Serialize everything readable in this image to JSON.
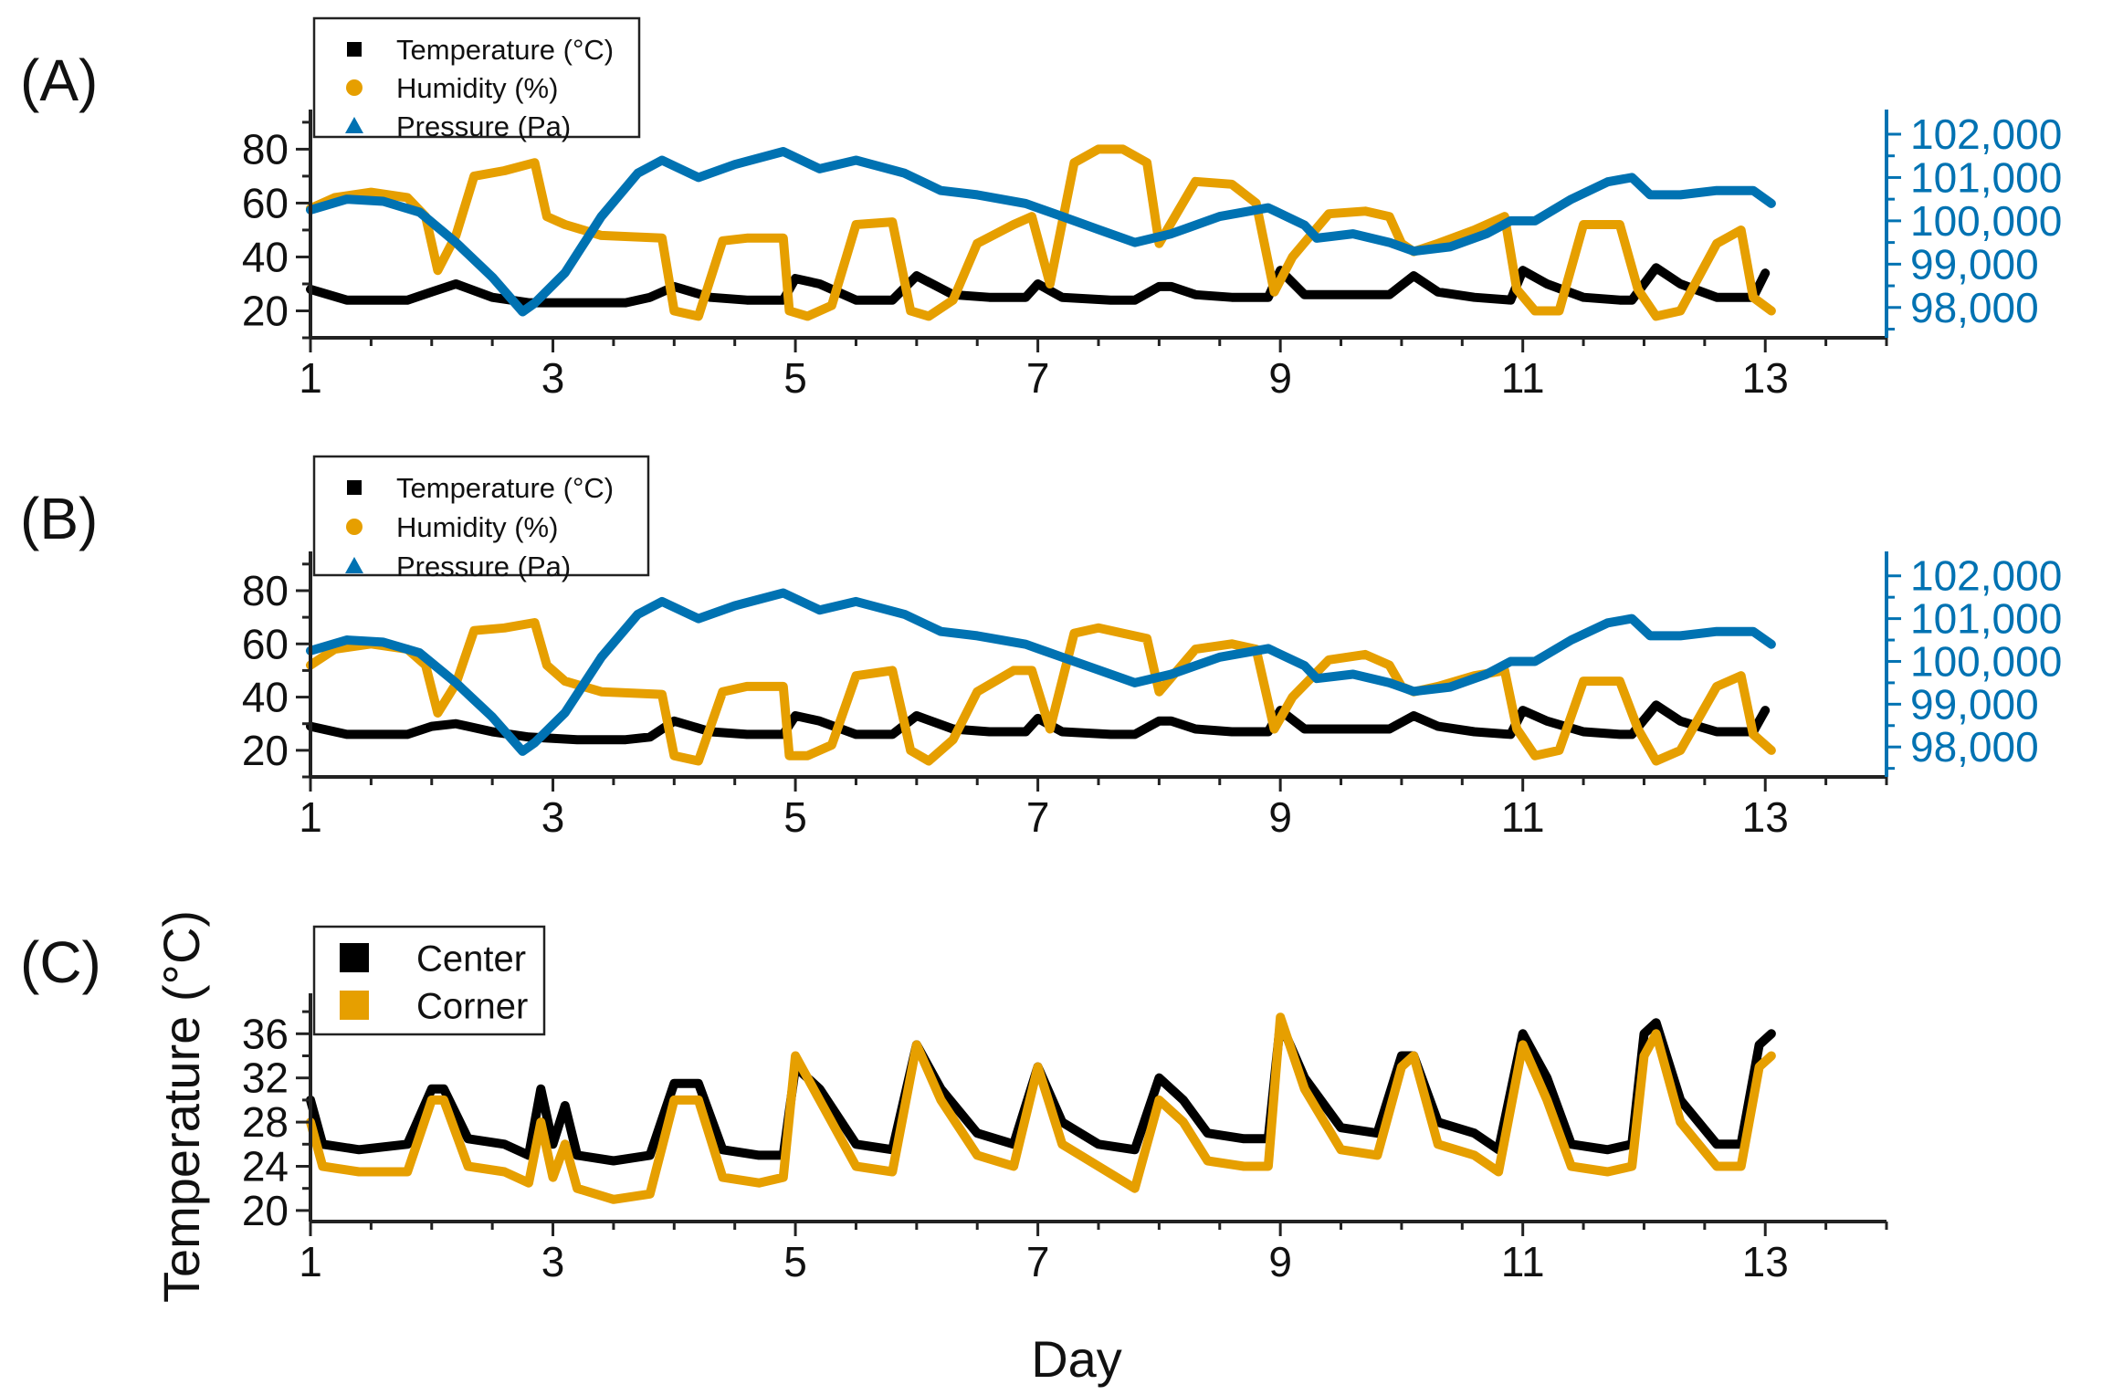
{
  "chart_data": [
    {
      "type": "line",
      "panel_label": "(A)",
      "xlabel": "",
      "x_ticks": [
        "1",
        "3",
        "5",
        "7",
        "9",
        "11",
        "13"
      ],
      "xlim": [
        1,
        14
      ],
      "y_left_ticks": [
        "20",
        "40",
        "60",
        "80"
      ],
      "ylim_left": [
        10,
        92
      ],
      "y_right_ticks": [
        "98,000",
        "99,000",
        "100,000",
        "101,000",
        "102,000"
      ],
      "ylim_right": [
        97300,
        102400
      ],
      "colors": {
        "temperature": "#000000",
        "humidity": "#E69F00",
        "pressure": "#0072B2"
      },
      "legend": [
        "Temperature (°C)",
        "Humidity (%)",
        "Pressure (Pa)"
      ],
      "series": [
        {
          "name": "Temperature (°C)",
          "axis": "left",
          "x": [
            1.0,
            1.3,
            1.8,
            2.0,
            2.2,
            2.5,
            2.8,
            3.2,
            3.6,
            3.8,
            4.0,
            4.3,
            4.6,
            4.9,
            5.0,
            5.2,
            5.5,
            5.8,
            6.0,
            6.3,
            6.6,
            6.9,
            7.0,
            7.2,
            7.6,
            7.8,
            8.0,
            8.1,
            8.3,
            8.6,
            8.9,
            9.0,
            9.2,
            9.6,
            9.9,
            10.1,
            10.3,
            10.6,
            10.9,
            11.0,
            11.2,
            11.5,
            11.8,
            11.9,
            12.1,
            12.3,
            12.6,
            12.9,
            13.0
          ],
          "values": [
            28,
            24,
            24,
            27,
            30,
            25,
            23,
            23,
            23,
            25,
            29,
            25,
            24,
            24,
            32,
            30,
            24,
            24,
            33,
            26,
            25,
            25,
            30,
            25,
            24,
            24,
            29,
            29,
            26,
            25,
            25,
            35,
            26,
            26,
            26,
            33,
            27,
            25,
            24,
            35,
            30,
            25,
            24,
            24,
            36,
            30,
            25,
            25,
            34
          ]
        },
        {
          "name": "Humidity (%)",
          "axis": "left",
          "x": [
            1.0,
            1.2,
            1.5,
            1.8,
            1.95,
            2.05,
            2.2,
            2.35,
            2.6,
            2.85,
            2.95,
            3.1,
            3.4,
            3.9,
            4.0,
            4.2,
            4.4,
            4.6,
            4.9,
            4.95,
            5.1,
            5.3,
            5.5,
            5.8,
            5.95,
            6.1,
            6.3,
            6.5,
            6.8,
            6.95,
            7.1,
            7.3,
            7.5,
            7.7,
            7.9,
            8.0,
            8.3,
            8.6,
            8.8,
            8.95,
            9.1,
            9.4,
            9.7,
            9.9,
            10.0,
            10.1,
            10.3,
            10.6,
            10.85,
            10.95,
            11.1,
            11.3,
            11.5,
            11.8,
            11.95,
            12.1,
            12.3,
            12.6,
            12.8,
            12.9,
            13.05
          ],
          "values": [
            58,
            62,
            64,
            62,
            55,
            35,
            48,
            70,
            72,
            75,
            55,
            52,
            48,
            47,
            20,
            18,
            46,
            47,
            47,
            20,
            18,
            22,
            52,
            53,
            20,
            18,
            24,
            45,
            52,
            55,
            30,
            75,
            80,
            80,
            75,
            45,
            68,
            67,
            60,
            27,
            40,
            56,
            57,
            55,
            45,
            42,
            45,
            50,
            55,
            28,
            20,
            20,
            52,
            52,
            28,
            18,
            20,
            45,
            50,
            25,
            20
          ]
        },
        {
          "name": "Pressure (Pa)",
          "axis": "right",
          "x": [
            1.0,
            1.3,
            1.6,
            1.9,
            2.2,
            2.5,
            2.75,
            2.85,
            3.1,
            3.4,
            3.7,
            3.9,
            4.2,
            4.5,
            4.9,
            5.2,
            5.5,
            5.9,
            6.2,
            6.5,
            6.9,
            7.2,
            7.5,
            7.8,
            8.1,
            8.5,
            8.9,
            9.2,
            9.3,
            9.6,
            9.9,
            10.1,
            10.4,
            10.7,
            10.9,
            11.1,
            11.4,
            11.7,
            11.9,
            12.05,
            12.3,
            12.6,
            12.9,
            13.05
          ],
          "values": [
            100250,
            100500,
            100450,
            100200,
            99500,
            98700,
            97900,
            98100,
            98800,
            100100,
            101100,
            101400,
            101000,
            101300,
            101600,
            101200,
            101400,
            101100,
            100700,
            100600,
            100400,
            100100,
            99800,
            99500,
            99700,
            100100,
            100300,
            99900,
            99600,
            99700,
            99500,
            99300,
            99400,
            99700,
            100000,
            100000,
            100500,
            100900,
            101000,
            100600,
            100600,
            100700,
            100700,
            100400
          ]
        }
      ]
    },
    {
      "type": "line",
      "panel_label": "(B)",
      "xlabel": "",
      "x_ticks": [
        "1",
        "3",
        "5",
        "7",
        "9",
        "11",
        "13"
      ],
      "xlim": [
        1,
        14
      ],
      "y_left_ticks": [
        "20",
        "40",
        "60",
        "80"
      ],
      "ylim_left": [
        10,
        92
      ],
      "y_right_ticks": [
        "98,000",
        "99,000",
        "100,000",
        "101,000",
        "102,000"
      ],
      "ylim_right": [
        97300,
        102400
      ],
      "colors": {
        "temperature": "#000000",
        "humidity": "#E69F00",
        "pressure": "#0072B2"
      },
      "legend": [
        "Temperature (°C)",
        "Humidity (%)",
        "Pressure (Pa)"
      ],
      "series": [
        {
          "name": "Temperature (°C)",
          "axis": "left",
          "x": [
            1.0,
            1.3,
            1.8,
            2.0,
            2.2,
            2.5,
            2.8,
            3.2,
            3.6,
            3.8,
            4.0,
            4.3,
            4.6,
            4.9,
            5.0,
            5.2,
            5.5,
            5.8,
            6.0,
            6.3,
            6.6,
            6.9,
            7.0,
            7.2,
            7.6,
            7.8,
            8.0,
            8.1,
            8.3,
            8.6,
            8.9,
            9.0,
            9.2,
            9.6,
            9.9,
            10.1,
            10.3,
            10.6,
            10.9,
            11.0,
            11.2,
            11.5,
            11.8,
            11.9,
            12.1,
            12.3,
            12.6,
            12.9,
            13.0
          ],
          "values": [
            29,
            26,
            26,
            29,
            30,
            27,
            25,
            24,
            24,
            25,
            31,
            27,
            26,
            26,
            33,
            31,
            26,
            26,
            33,
            28,
            27,
            27,
            32,
            27,
            26,
            26,
            31,
            31,
            28,
            27,
            27,
            35,
            28,
            28,
            28,
            33,
            29,
            27,
            26,
            35,
            31,
            27,
            26,
            26,
            37,
            31,
            27,
            27,
            35
          ]
        },
        {
          "name": "Humidity (%)",
          "axis": "left",
          "x": [
            1.0,
            1.2,
            1.5,
            1.8,
            1.95,
            2.05,
            2.2,
            2.35,
            2.6,
            2.85,
            2.95,
            3.1,
            3.4,
            3.9,
            4.0,
            4.2,
            4.4,
            4.6,
            4.9,
            4.95,
            5.1,
            5.3,
            5.5,
            5.8,
            5.95,
            6.1,
            6.3,
            6.5,
            6.8,
            6.95,
            7.1,
            7.3,
            7.5,
            7.7,
            7.9,
            8.0,
            8.3,
            8.6,
            8.8,
            8.95,
            9.1,
            9.4,
            9.7,
            9.9,
            10.0,
            10.1,
            10.3,
            10.6,
            10.85,
            10.95,
            11.1,
            11.3,
            11.5,
            11.8,
            11.95,
            12.1,
            12.3,
            12.6,
            12.8,
            12.9,
            13.05
          ],
          "values": [
            52,
            58,
            60,
            58,
            52,
            34,
            45,
            65,
            66,
            68,
            52,
            46,
            42,
            41,
            18,
            16,
            42,
            44,
            44,
            18,
            18,
            22,
            48,
            50,
            20,
            16,
            24,
            42,
            50,
            50,
            28,
            64,
            66,
            64,
            62,
            42,
            58,
            60,
            58,
            28,
            40,
            54,
            56,
            52,
            44,
            42,
            44,
            48,
            50,
            28,
            18,
            20,
            46,
            46,
            28,
            16,
            20,
            44,
            48,
            26,
            20
          ]
        },
        {
          "name": "Pressure (Pa)",
          "axis": "right",
          "x": [
            1.0,
            1.3,
            1.6,
            1.9,
            2.2,
            2.5,
            2.75,
            2.85,
            3.1,
            3.4,
            3.7,
            3.9,
            4.2,
            4.5,
            4.9,
            5.2,
            5.5,
            5.9,
            6.2,
            6.5,
            6.9,
            7.2,
            7.5,
            7.8,
            8.1,
            8.5,
            8.9,
            9.2,
            9.3,
            9.6,
            9.9,
            10.1,
            10.4,
            10.7,
            10.9,
            11.1,
            11.4,
            11.7,
            11.9,
            12.05,
            12.3,
            12.6,
            12.9,
            13.05
          ],
          "values": [
            100250,
            100500,
            100450,
            100200,
            99500,
            98700,
            97900,
            98100,
            98800,
            100100,
            101100,
            101400,
            101000,
            101300,
            101600,
            101200,
            101400,
            101100,
            100700,
            100600,
            100400,
            100100,
            99800,
            99500,
            99700,
            100100,
            100300,
            99900,
            99600,
            99700,
            99500,
            99300,
            99400,
            99700,
            100000,
            100000,
            100500,
            100900,
            101000,
            100600,
            100600,
            100700,
            100700,
            100400
          ]
        }
      ]
    },
    {
      "type": "line",
      "panel_label": "(C)",
      "xlabel": "Day",
      "ylabel": "Temperature (°C)",
      "x_ticks": [
        "1",
        "3",
        "5",
        "7",
        "9",
        "11",
        "13"
      ],
      "xlim": [
        1,
        14
      ],
      "y_left_ticks": [
        "20",
        "24",
        "28",
        "32",
        "36"
      ],
      "ylim_left": [
        19,
        39
      ],
      "colors": {
        "center": "#000000",
        "corner": "#E69F00"
      },
      "legend": [
        "Center",
        "Corner"
      ],
      "series": [
        {
          "name": "Center",
          "axis": "left",
          "x": [
            1.0,
            1.1,
            1.4,
            1.8,
            2.0,
            2.1,
            2.3,
            2.6,
            2.8,
            2.9,
            3.0,
            3.1,
            3.2,
            3.5,
            3.8,
            4.0,
            4.2,
            4.4,
            4.7,
            4.9,
            5.0,
            5.2,
            5.5,
            5.8,
            6.0,
            6.2,
            6.5,
            6.8,
            7.0,
            7.2,
            7.5,
            7.8,
            8.0,
            8.2,
            8.4,
            8.7,
            8.9,
            9.0,
            9.2,
            9.5,
            9.8,
            10.0,
            10.1,
            10.3,
            10.6,
            10.8,
            11.0,
            11.2,
            11.4,
            11.7,
            11.9,
            12.0,
            12.1,
            12.3,
            12.6,
            12.8,
            12.95,
            13.05
          ],
          "values": [
            30,
            26,
            25.5,
            26,
            31,
            31,
            26.5,
            26,
            25,
            31,
            26,
            29.5,
            25,
            24.5,
            25,
            31.5,
            31.5,
            25.5,
            25,
            25,
            33,
            31,
            26,
            25.5,
            35,
            31,
            27,
            26,
            33,
            28,
            26,
            25.5,
            32,
            30,
            27,
            26.5,
            26.5,
            37,
            32,
            27.5,
            27,
            34,
            34,
            28,
            27,
            25.5,
            36,
            32,
            26,
            25.5,
            26,
            36,
            37,
            30,
            26,
            26,
            35,
            36
          ]
        },
        {
          "name": "Corner",
          "axis": "left",
          "x": [
            1.0,
            1.1,
            1.4,
            1.8,
            2.0,
            2.1,
            2.3,
            2.6,
            2.8,
            2.9,
            3.0,
            3.1,
            3.2,
            3.5,
            3.8,
            4.0,
            4.2,
            4.4,
            4.7,
            4.9,
            5.0,
            5.2,
            5.5,
            5.8,
            6.0,
            6.2,
            6.5,
            6.8,
            7.0,
            7.2,
            7.5,
            7.8,
            8.0,
            8.2,
            8.4,
            8.7,
            8.9,
            9.0,
            9.2,
            9.5,
            9.8,
            10.0,
            10.1,
            10.3,
            10.6,
            10.8,
            11.0,
            11.2,
            11.4,
            11.7,
            11.9,
            12.0,
            12.1,
            12.3,
            12.6,
            12.8,
            12.95,
            13.05
          ],
          "values": [
            28,
            24,
            23.5,
            23.5,
            30,
            30,
            24,
            23.5,
            22.5,
            28,
            23,
            26,
            22,
            21,
            21.5,
            30,
            30,
            23,
            22.5,
            23,
            34,
            30,
            24,
            23.5,
            35,
            30,
            25,
            24,
            33,
            26,
            24,
            22,
            30,
            28,
            24.5,
            24,
            24,
            37.5,
            31,
            25.5,
            25,
            33,
            34,
            26,
            25,
            23.5,
            35,
            30,
            24,
            23.5,
            24,
            34,
            36,
            28,
            24,
            24,
            33,
            34
          ]
        }
      ]
    }
  ]
}
